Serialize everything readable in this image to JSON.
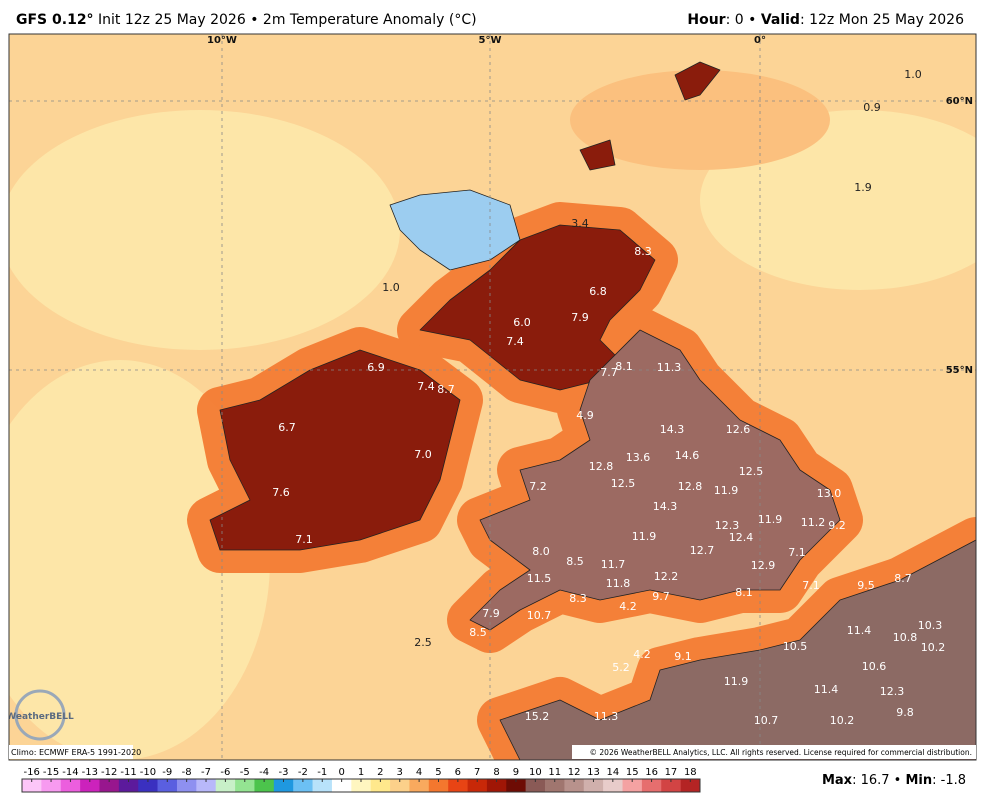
{
  "header": {
    "model": "GFS 0.12°",
    "description": "Init 12z 25 May 2026 • 2m Temperature Anomaly (°C)",
    "hour_label": "Hour",
    "hour_text": ": 0 • ",
    "valid_label": "Valid",
    "valid_text": ": 12z Mon 25 May 2026"
  },
  "map": {
    "lon_labels": [
      "10°W",
      "5°W",
      "0°"
    ],
    "lat_labels": [
      "60°N",
      "55°N"
    ],
    "labels": [
      1.0,
      0.9,
      1.9,
      3.4,
      8.3,
      6.8,
      6.0,
      7.9,
      7.4,
      1.0,
      6.9,
      7.4,
      8.7,
      7.7,
      8.1,
      11.3,
      6.7,
      4.9,
      14.3,
      12.6,
      7.0,
      13.6,
      14.6,
      12.8,
      12.5,
      7.2,
      12.5,
      12.8,
      11.9,
      13.0,
      7.6,
      14.3,
      11.9,
      11.2,
      9.2,
      12.3,
      12.4,
      7.1,
      11.9,
      8.0,
      12.7,
      7.1,
      8.5,
      11.7,
      12.9,
      11.5,
      12.2,
      11.8,
      7.1,
      9.5,
      8.7,
      8.3,
      9.7,
      8.1,
      4.2,
      7.9,
      10.7,
      10.3,
      11.4,
      8.5,
      10.8,
      10.2,
      2.5,
      10.5,
      4.2,
      9.1,
      5.2,
      10.6,
      11.9,
      11.4,
      12.3,
      15.2,
      11.3,
      9.8,
      10.7,
      10.2
    ],
    "logo": "WeatherBELL",
    "climo": "Climo: ECMWF ERA-5 1991-2020",
    "copyright": "© 2026 WeatherBELL Analytics, LLC. All rights reserved. License required for commercial distribution."
  },
  "colorbar": {
    "ticks": [
      -16,
      -15,
      -14,
      -13,
      -12,
      -11,
      -10,
      -9,
      -8,
      -7,
      -6,
      -5,
      -4,
      -3,
      -2,
      -1,
      0,
      1,
      2,
      3,
      4,
      5,
      6,
      7,
      8,
      9,
      10,
      11,
      12,
      13,
      14,
      15,
      16,
      17,
      18
    ],
    "colors": [
      "#fcc6f8",
      "#f79af0",
      "#ec5ede",
      "#cc22bc",
      "#98168e",
      "#5c1a9c",
      "#3a30c0",
      "#5a5fe0",
      "#8e90f0",
      "#b8b8fa",
      "#c8f0c8",
      "#94e492",
      "#4cc44c",
      "#1f98e0",
      "#6cc0f4",
      "#b8e2fa",
      "#ffffff",
      "#fff6c0",
      "#ffe88c",
      "#fcd08a",
      "#f9a95e",
      "#f4772e",
      "#e84414",
      "#c82808",
      "#a01606",
      "#6e0c04",
      "#8a5a56",
      "#a0766f",
      "#b8928c",
      "#d0b0ac",
      "#e8ccca",
      "#f4a2a2",
      "#e66e6e",
      "#d24444",
      "#b42424"
    ]
  },
  "footer": {
    "max_label": "Max",
    "max_text": ": 16.7 • ",
    "min_label": "Min",
    "min_text": ": -1.8"
  }
}
